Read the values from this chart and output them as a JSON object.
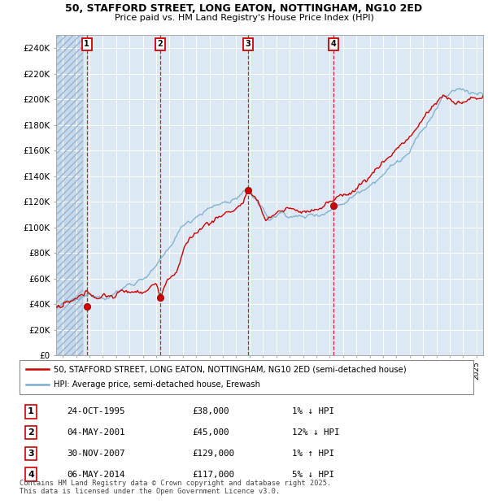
{
  "title_line1": "50, STAFFORD STREET, LONG EATON, NOTTINGHAM, NG10 2ED",
  "title_line2": "Price paid vs. HM Land Registry's House Price Index (HPI)",
  "ylim": [
    0,
    250000
  ],
  "yticks": [
    0,
    20000,
    40000,
    60000,
    80000,
    100000,
    120000,
    140000,
    160000,
    180000,
    200000,
    220000,
    240000
  ],
  "ytick_labels": [
    "£0",
    "£20K",
    "£40K",
    "£60K",
    "£80K",
    "£100K",
    "£120K",
    "£140K",
    "£160K",
    "£180K",
    "£200K",
    "£220K",
    "£240K"
  ],
  "plot_bg_color": "#dce9f5",
  "grid_color": "#ffffff",
  "red_line_color": "#cc0000",
  "blue_line_color": "#7aacce",
  "vline_color": "#cc0000",
  "legend_line1": "50, STAFFORD STREET, LONG EATON, NOTTINGHAM, NG10 2ED (semi-detached house)",
  "legend_line2": "HPI: Average price, semi-detached house, Erewash",
  "transactions": [
    {
      "num": 1,
      "date": "24-OCT-1995",
      "price": "£38,000",
      "pct": "1% ↓ HPI",
      "year_x": 1995.8,
      "val": 38000
    },
    {
      "num": 2,
      "date": "04-MAY-2001",
      "price": "£45,000",
      "pct": "12% ↓ HPI",
      "year_x": 2001.3,
      "val": 45000
    },
    {
      "num": 3,
      "date": "30-NOV-2007",
      "price": "£129,000",
      "pct": "1% ↑ HPI",
      "year_x": 2007.9,
      "val": 129000
    },
    {
      "num": 4,
      "date": "06-MAY-2014",
      "price": "£117,000",
      "pct": "5% ↓ HPI",
      "year_x": 2014.3,
      "val": 117000
    }
  ],
  "footer": "Contains HM Land Registry data © Crown copyright and database right 2025.\nThis data is licensed under the Open Government Licence v3.0.",
  "xmin": 1993.5,
  "xmax": 2025.5,
  "hatch_end": 1995.5
}
